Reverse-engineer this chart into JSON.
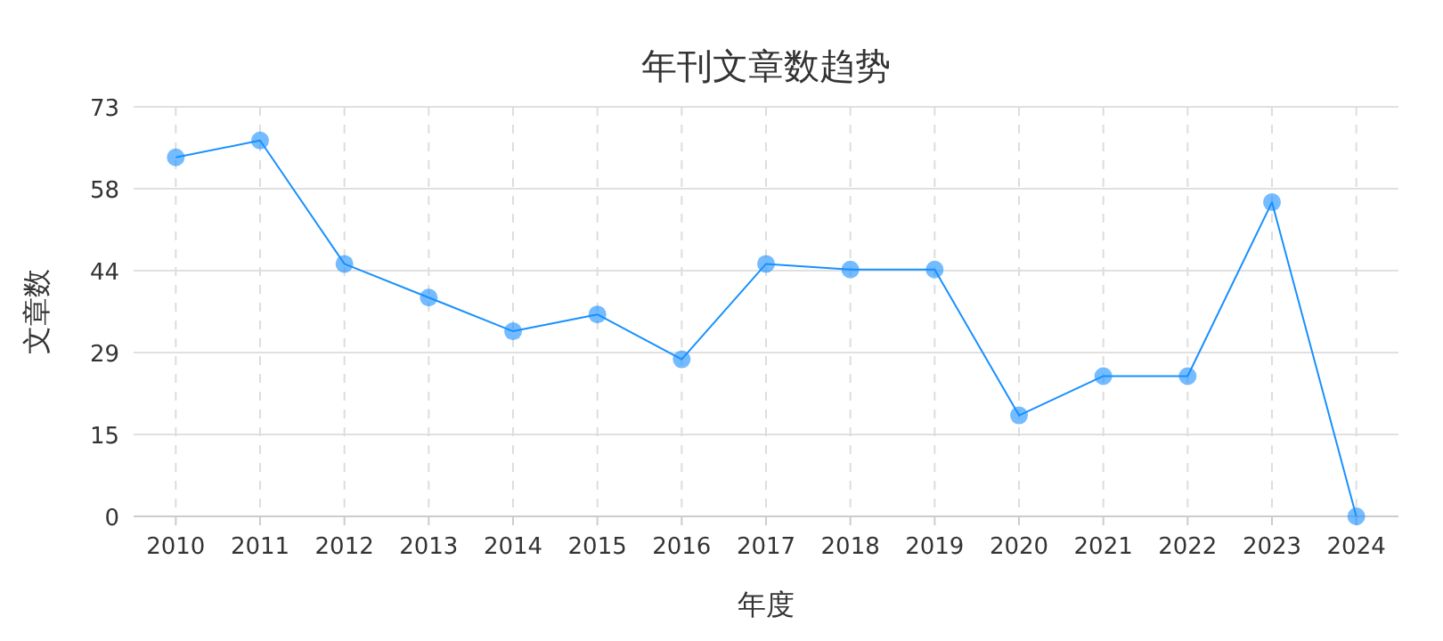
{
  "chart_data": {
    "type": "line",
    "title": "年刊文章数趋势",
    "xlabel": "年度",
    "ylabel": "文章数",
    "categories": [
      "2010",
      "2011",
      "2012",
      "2013",
      "2014",
      "2015",
      "2016",
      "2017",
      "2018",
      "2019",
      "2020",
      "2021",
      "2022",
      "2023",
      "2024"
    ],
    "series": [
      {
        "color": "#1890ff",
        "values": [
          64,
          67,
          45,
          39,
          33,
          36,
          28,
          45,
          44,
          44,
          18,
          25,
          25,
          56,
          0
        ]
      }
    ],
    "ylim": [
      0,
      73
    ],
    "yticks": [
      0,
      {
        "value": 14.6,
        "label": "15"
      },
      {
        "value": 29.2,
        "label": "29"
      },
      {
        "value": 43.8,
        "label": "44"
      },
      {
        "value": 58.4,
        "label": "58"
      },
      73
    ],
    "grid": true,
    "marker": "circle",
    "line_style": "solid"
  }
}
